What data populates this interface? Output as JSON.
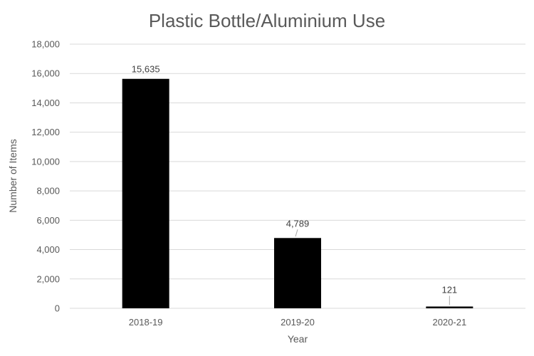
{
  "chart_data": {
    "type": "bar",
    "title": "Plastic Bottle/Aluminium Use",
    "xlabel": "Year",
    "ylabel": "Number of Items",
    "categories": [
      "2018-19",
      "2019-20",
      "2020-21"
    ],
    "values": [
      15635,
      4789,
      121
    ],
    "value_labels": [
      "15,635",
      "4,789",
      "121"
    ],
    "ylim": [
      0,
      18000
    ],
    "yticks": [
      0,
      2000,
      4000,
      6000,
      8000,
      10000,
      12000,
      14000,
      16000,
      18000
    ],
    "ytick_labels": [
      "0",
      "2,000",
      "4,000",
      "6,000",
      "8,000",
      "10,000",
      "12,000",
      "14,000",
      "16,000",
      "18,000"
    ],
    "grid": true,
    "legend": "none",
    "bar_color": "#000000"
  }
}
